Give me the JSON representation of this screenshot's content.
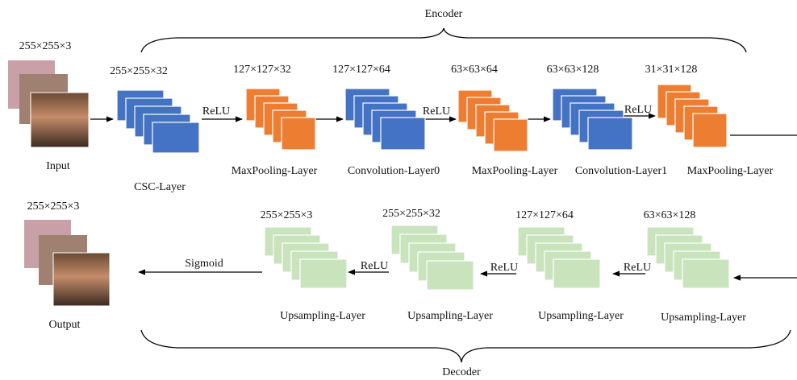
{
  "encoder": {
    "title": "Encoder",
    "input": {
      "dims": "255×255×3",
      "label": "Input"
    },
    "layers": [
      {
        "dims": "255×255×32",
        "name": "CSC-Layer"
      },
      {
        "dims": "127×127×32",
        "name": "MaxPooling-Layer"
      },
      {
        "dims": "127×127×64",
        "name": "Convolution-Layer0"
      },
      {
        "dims": "63×63×64",
        "name": "MaxPooling-Layer"
      },
      {
        "dims": "63×63×128",
        "name": "Convolution-Layer1"
      },
      {
        "dims": "31×31×128",
        "name": "MaxPooling-Layer"
      }
    ],
    "activations": [
      "ReLU",
      "ReLU",
      "ReLU"
    ]
  },
  "decoder": {
    "title": "Decoder",
    "output": {
      "dims": "255×255×3",
      "label": "Output"
    },
    "layers": [
      {
        "dims": "255×255×3",
        "name": "Upsampling-Layer"
      },
      {
        "dims": "255×255×32",
        "name": "Upsampling-Layer"
      },
      {
        "dims": "127×127×64",
        "name": "Upsampling-Layer"
      },
      {
        "dims": "63×63×128",
        "name": "Upsampling-Layer"
      }
    ],
    "activations": [
      "Sigmoid",
      "ReLU",
      "ReLU",
      "ReLU"
    ]
  }
}
